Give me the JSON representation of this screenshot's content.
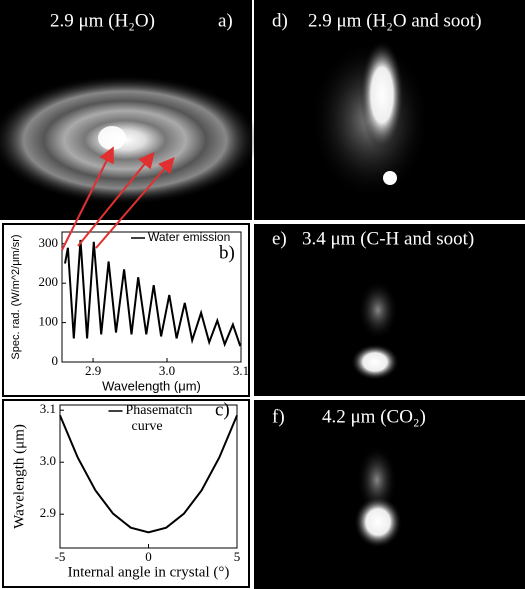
{
  "panels": [
    {
      "label": "a)",
      "title": "2.9 μm (H₂O)"
    },
    {
      "label": "d)",
      "title": "2.9 μm (H₂O and soot)"
    },
    {
      "label": "e)",
      "title": "3.4 μm (C-H and soot)"
    },
    {
      "label": "f)",
      "title": "4.2 μm (CO₂)"
    }
  ],
  "chart_data": [
    {
      "type": "line",
      "label": "b)",
      "x_label": "Wavelength (μm)",
      "y_label": "Spec. rad. (W/m^2/μm/sr)",
      "x": [
        2.862,
        2.866,
        2.874,
        2.883,
        2.892,
        2.901,
        2.911,
        2.921,
        2.931,
        2.942,
        2.952,
        2.961,
        2.972,
        2.982,
        2.992,
        3.003,
        3.013,
        3.024,
        3.034,
        3.046,
        3.057,
        3.068,
        3.078,
        3.089,
        3.099
      ],
      "series": [
        {
          "name": "Water emission",
          "color": "#000000",
          "values": [
            250,
            290,
            60,
            310,
            60,
            305,
            70,
            255,
            75,
            235,
            70,
            215,
            70,
            195,
            65,
            170,
            60,
            150,
            55,
            125,
            50,
            105,
            45,
            95,
            40
          ]
        }
      ],
      "xlim": [
        2.858,
        3.1
      ],
      "ylim": [
        0,
        330
      ],
      "xticks": [
        2.9,
        {
          "value": 3.0,
          "label": "3.0"
        },
        3.1
      ],
      "yticks": [
        0,
        100,
        200,
        300
      ],
      "legend": "upper-right"
    },
    {
      "type": "line",
      "label": "c)",
      "x_label": "Internal angle in crystal (°)",
      "y_label": "Wavelength (μm)",
      "x": [
        -5,
        -4,
        -3,
        -2,
        -1,
        0,
        1,
        2,
        3,
        4,
        5
      ],
      "series": [
        {
          "name": "Phasematch curve",
          "color": "#000000",
          "values": [
            3.09,
            3.009,
            2.946,
            2.901,
            2.874,
            2.865,
            2.874,
            2.901,
            2.946,
            3.009,
            3.09
          ]
        }
      ],
      "xlim": [
        -5,
        5
      ],
      "ylim": [
        2.835,
        3.11
      ],
      "xticks": [
        -5,
        0,
        5
      ],
      "yticks": [
        2.9,
        {
          "value": 3.0,
          "label": "3.0"
        },
        3.1
      ],
      "legend": "upper-center"
    }
  ]
}
